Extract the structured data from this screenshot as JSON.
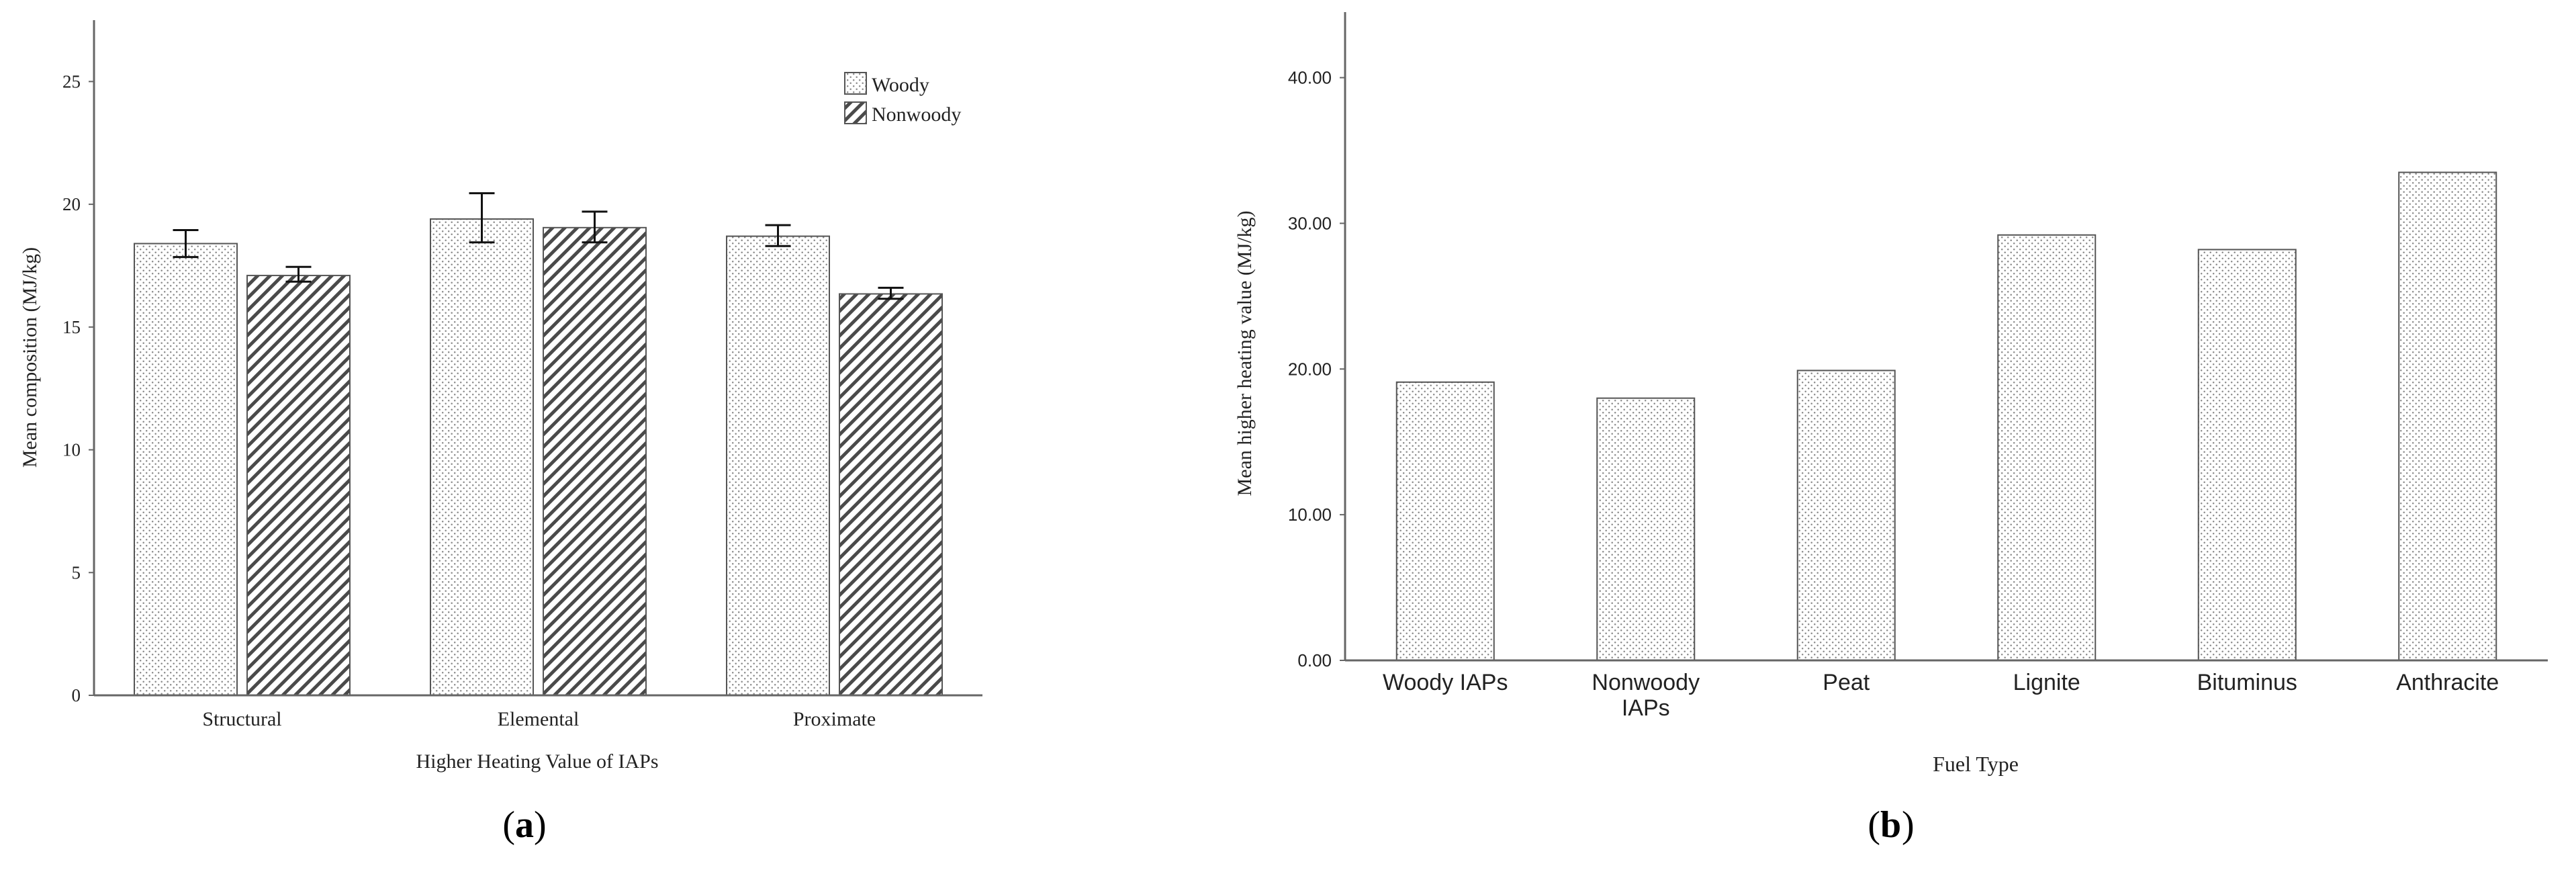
{
  "chart_data": [
    {
      "type": "bar",
      "panel_label": "a",
      "title": "",
      "xlabel": "Higher Heating Value of IAPs",
      "ylabel": "Mean composition (MJ/kg)",
      "ylim": [
        0,
        27.5
      ],
      "yticks": [
        "0",
        "5",
        "10",
        "15",
        "20",
        "25"
      ],
      "categories": [
        "Structural",
        "Elemental",
        "Proximate"
      ],
      "series": [
        {
          "name": "Woody",
          "values": [
            18.4,
            19.4,
            18.7
          ],
          "err_low": [
            17.85,
            18.45,
            18.3
          ],
          "err_high": [
            18.95,
            20.45,
            19.15
          ]
        },
        {
          "name": "Nonwoody",
          "values": [
            17.1,
            19.05,
            16.35
          ],
          "err_low": [
            16.85,
            18.45,
            16.15
          ],
          "err_high": [
            17.45,
            19.7,
            16.6
          ]
        }
      ],
      "legend_position": "top-right",
      "grid": false
    },
    {
      "type": "bar",
      "panel_label": "b",
      "title": "",
      "xlabel": "Fuel Type",
      "ylabel": "Mean higher heating value (MJ/kg)",
      "ylim": [
        0,
        44.5
      ],
      "yticks": [
        "0.00",
        "10.00",
        "20.00",
        "30.00",
        "40.00"
      ],
      "categories": [
        "Woody IAPs",
        "Nonwoody IAPs",
        "Peat",
        "Lignite",
        "Bituminus",
        "Anthracite"
      ],
      "category_lines": [
        [
          "Woody IAPs"
        ],
        [
          "Nonwoody",
          "IAPs"
        ],
        [
          "Peat"
        ],
        [
          "Lignite"
        ],
        [
          "Bituminus"
        ],
        [
          "Anthracite"
        ]
      ],
      "values": [
        19.1,
        18.0,
        19.9,
        29.2,
        28.2,
        33.5
      ],
      "grid": false
    }
  ]
}
